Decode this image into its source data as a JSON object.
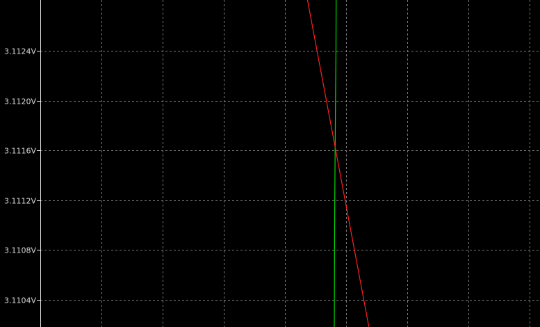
{
  "chart_data": {
    "type": "line",
    "title": "",
    "xlabel": "",
    "ylabel": "",
    "y_unit": "V",
    "ylim": [
      3.11018,
      3.11281
    ],
    "xlim": [
      0,
      1
    ],
    "yticks": [
      {
        "value": 3.1124,
        "label": "3.1124V"
      },
      {
        "value": 3.112,
        "label": "3.1120V"
      },
      {
        "value": 3.1116,
        "label": "3.1116V"
      },
      {
        "value": 3.1112,
        "label": "3.1112V"
      },
      {
        "value": 3.1108,
        "label": "3.1108V"
      },
      {
        "value": 3.1104,
        "label": "3.1104V"
      }
    ],
    "x_grid_count": 8,
    "grid": true,
    "legend": "none",
    "background_color": "#000000",
    "series": [
      {
        "color": "#00dd00",
        "points": [
          {
            "x": 0.592,
            "y": 3.11281
          },
          {
            "x": 0.5917,
            "y": 3.1124
          },
          {
            "x": 0.5908,
            "y": 3.112
          },
          {
            "x": 0.59,
            "y": 3.1116
          },
          {
            "x": 0.5893,
            "y": 3.1112
          },
          {
            "x": 0.5888,
            "y": 3.1108
          },
          {
            "x": 0.5885,
            "y": 3.1104
          },
          {
            "x": 0.5883,
            "y": 3.11018
          }
        ]
      },
      {
        "color": "#ff2020",
        "points": [
          {
            "x": 0.5347,
            "y": 3.11281
          },
          {
            "x": 0.6576,
            "y": 3.11018
          }
        ]
      }
    ]
  }
}
